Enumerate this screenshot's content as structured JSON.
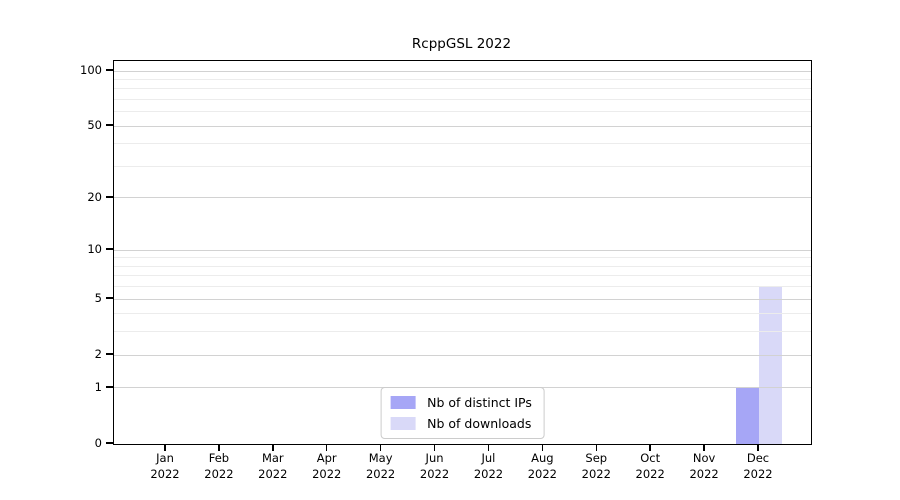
{
  "chart_data": {
    "type": "bar",
    "title": "RcppGSL 2022",
    "categories": [
      "Jan",
      "Feb",
      "Mar",
      "Apr",
      "May",
      "Jun",
      "Jul",
      "Aug",
      "Sep",
      "Oct",
      "Nov",
      "Dec"
    ],
    "year_label": "2022",
    "series": [
      {
        "name": "Nb of distinct IPs",
        "color": "#a6a6f6",
        "values": [
          0,
          0,
          0,
          0,
          0,
          0,
          0,
          0,
          0,
          0,
          0,
          1
        ]
      },
      {
        "name": "Nb of downloads",
        "color": "#d9d9f8",
        "values": [
          0,
          0,
          0,
          0,
          0,
          0,
          0,
          0,
          0,
          0,
          0,
          6
        ]
      }
    ],
    "yscale": "log1p",
    "yticks": [
      0,
      1,
      2,
      5,
      10,
      20,
      50,
      100
    ],
    "minor_gridlines": [
      3,
      4,
      6,
      7,
      8,
      9,
      30,
      40,
      60,
      70,
      80,
      90
    ],
    "ylim": [
      0,
      100
    ],
    "grid": true,
    "legend_position": "bottom-center",
    "colors": {
      "major_grid": "#d2d2d2",
      "minor_grid": "#ececec",
      "frame": "#000000",
      "background": "#ffffff"
    }
  }
}
